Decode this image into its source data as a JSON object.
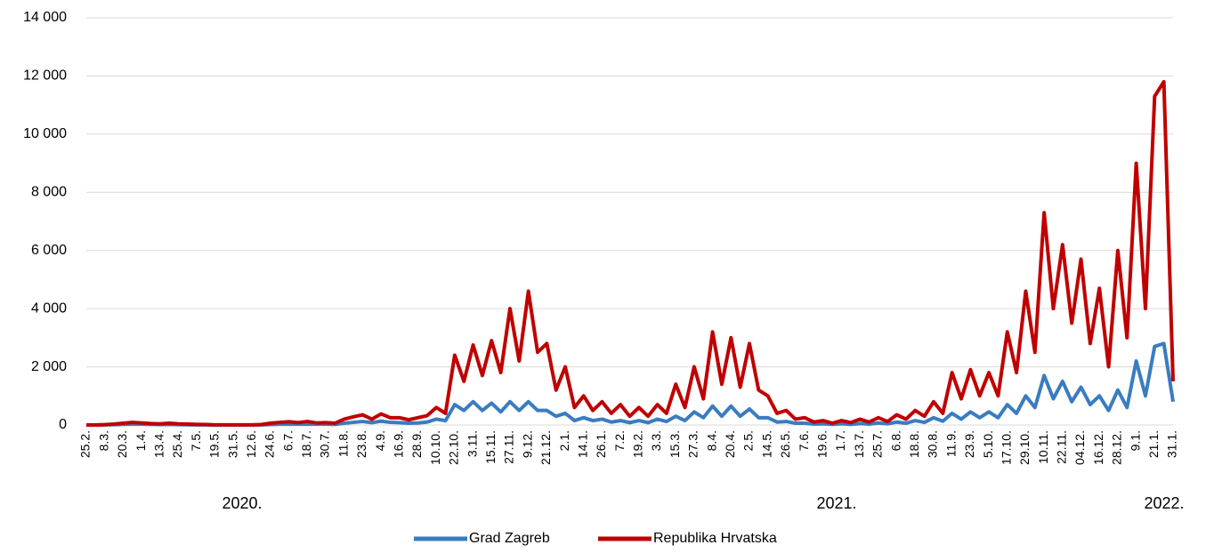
{
  "chart_data": {
    "type": "line",
    "categories": [
      "25.2.",
      null,
      "8.3.",
      null,
      "20.3.",
      null,
      "1.4.",
      null,
      "13.4.",
      null,
      "25.4.",
      null,
      "7.5.",
      null,
      "19.5.",
      null,
      "31.5.",
      null,
      "12.6.",
      null,
      "24.6.",
      null,
      "6.7.",
      null,
      "18.7.",
      null,
      "30.7.",
      null,
      "11.8.",
      null,
      "23.8.",
      null,
      "4.9.",
      null,
      "16.9.",
      null,
      "28.9.",
      null,
      "10.10.",
      null,
      "22.10.",
      null,
      "3.11.",
      null,
      "15.11.",
      null,
      "27.11.",
      null,
      "9.12.",
      null,
      "21.12.",
      null,
      "2.1.",
      null,
      "14.1.",
      null,
      "26.1.",
      null,
      "7.2.",
      null,
      "19.2.",
      null,
      "3.3.",
      null,
      "15.3.",
      null,
      "27.3.",
      null,
      "8.4.",
      null,
      "20.4.",
      null,
      "2.5.",
      null,
      "14.5.",
      null,
      "26.5.",
      null,
      "7.6.",
      null,
      "19.6.",
      null,
      "1.7.",
      null,
      "13.7.",
      null,
      "25.7.",
      null,
      "6.8.",
      null,
      "18.8.",
      null,
      "30.8.",
      null,
      "11.9.",
      null,
      "23.9.",
      null,
      "5.10.",
      null,
      "17.10.",
      null,
      "29.10.",
      null,
      "10.11.",
      null,
      "22.11.",
      null,
      "04.12.",
      null,
      "16.12.",
      null,
      "28.12.",
      null,
      "9.1.",
      null,
      "21.1.",
      null,
      "31.1."
    ],
    "year_labels": [
      "2020.",
      "2021.",
      "2022."
    ],
    "series": [
      {
        "name": "Grad Zagreb",
        "color": "#3a7cc1",
        "values": [
          0,
          0,
          2,
          10,
          20,
          30,
          25,
          20,
          15,
          20,
          10,
          8,
          5,
          3,
          1,
          1,
          0,
          1,
          1,
          3,
          15,
          25,
          30,
          25,
          30,
          25,
          25,
          20,
          60,
          90,
          120,
          80,
          130,
          90,
          80,
          60,
          70,
          100,
          200,
          150,
          700,
          500,
          800,
          500,
          750,
          450,
          800,
          500,
          800,
          500,
          500,
          300,
          400,
          150,
          250,
          150,
          200,
          100,
          150,
          80,
          150,
          80,
          200,
          120,
          300,
          150,
          450,
          250,
          650,
          300,
          650,
          300,
          550,
          250,
          250,
          100,
          120,
          60,
          60,
          30,
          40,
          20,
          40,
          20,
          50,
          30,
          70,
          40,
          100,
          60,
          150,
          90,
          250,
          130,
          400,
          200,
          450,
          250,
          450,
          250,
          700,
          400,
          1000,
          600,
          1700,
          900,
          1500,
          800,
          1300,
          700,
          1000,
          500,
          1200,
          600,
          2200,
          1000,
          2700,
          2800,
          800
        ]
      },
      {
        "name": "Republika Hrvatska",
        "color": "#c00000",
        "values": [
          0,
          0,
          10,
          30,
          60,
          90,
          70,
          50,
          40,
          60,
          40,
          30,
          20,
          15,
          5,
          3,
          2,
          3,
          5,
          15,
          60,
          90,
          110,
          80,
          120,
          70,
          80,
          60,
          200,
          280,
          350,
          200,
          380,
          250,
          250,
          180,
          250,
          320,
          600,
          400,
          2400,
          1500,
          2750,
          1700,
          2900,
          1800,
          4000,
          2200,
          4600,
          2500,
          2800,
          1200,
          2000,
          600,
          1000,
          500,
          800,
          400,
          700,
          300,
          600,
          300,
          700,
          400,
          1400,
          600,
          2000,
          900,
          3200,
          1400,
          3000,
          1300,
          2800,
          1200,
          1000,
          400,
          500,
          200,
          250,
          100,
          150,
          60,
          150,
          80,
          200,
          100,
          250,
          120,
          350,
          200,
          500,
          300,
          800,
          400,
          1800,
          900,
          1900,
          1000,
          1800,
          1000,
          3200,
          1800,
          4600,
          2500,
          7300,
          4000,
          6200,
          3500,
          5700,
          2800,
          4700,
          2000,
          6000,
          3000,
          9000,
          4000,
          11300,
          11800,
          1500
        ]
      }
    ],
    "ylim": [
      0,
      14000
    ],
    "yticks": [
      0,
      {
        "value": 2000,
        "label": "2 000"
      },
      {
        "value": 4000,
        "label": "4 000"
      },
      {
        "value": 6000,
        "label": "6 000"
      },
      {
        "value": 8000,
        "label": "8 000"
      },
      {
        "value": 10000,
        "label": "10 000"
      },
      {
        "value": 12000,
        "label": "12 000"
      },
      {
        "value": 14000,
        "label": "14 000"
      }
    ],
    "grid": true,
    "legend": "bottom"
  }
}
